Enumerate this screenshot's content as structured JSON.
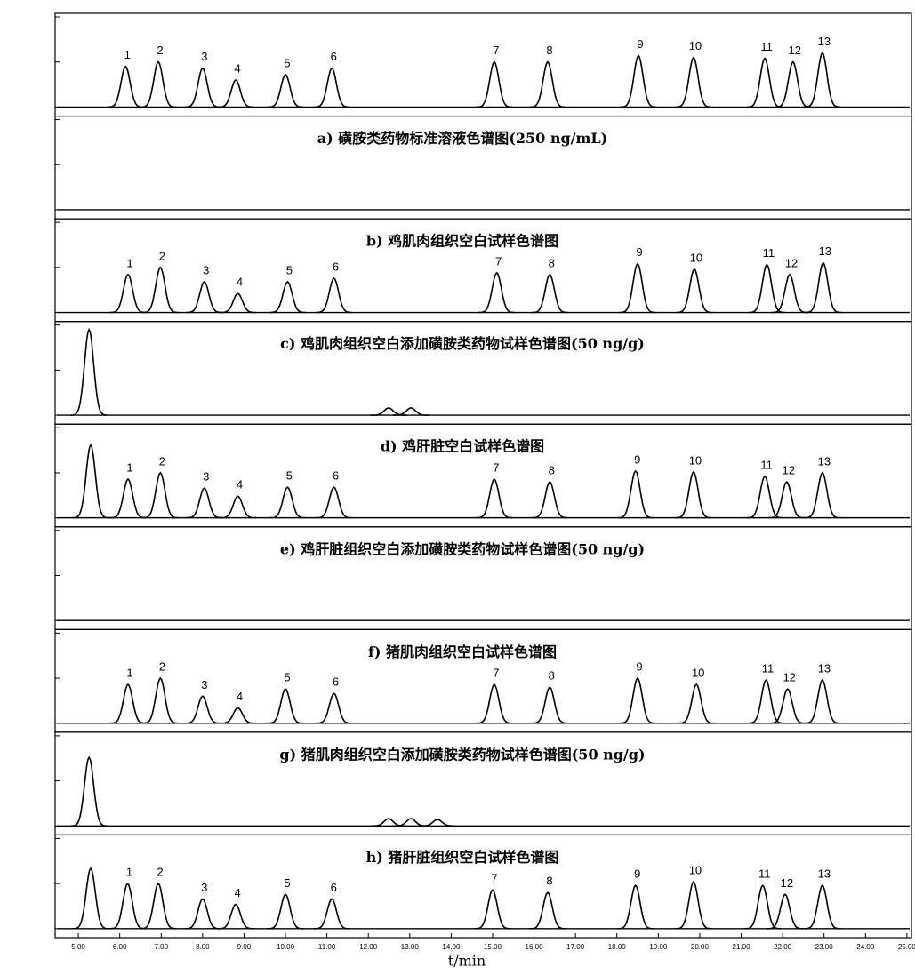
{
  "chart_data": [
    {
      "type": "chromatogram",
      "ylim": [
        -0.1,
        1
      ],
      "yticks": [
        0,
        0.5,
        1
      ],
      "peak_labels": [
        "1",
        "2",
        "3",
        "4",
        "5",
        "6",
        "7",
        "8",
        "9",
        "10",
        "11",
        "12",
        "13"
      ],
      "peak_x": [
        6.14,
        6.93,
        8.0,
        8.8,
        10.0,
        11.12,
        15.04,
        16.33,
        18.52,
        19.85,
        21.57,
        22.25,
        22.96
      ],
      "peak_heights": [
        0.45,
        0.5,
        0.43,
        0.3,
        0.36,
        0.43,
        0.5,
        0.5,
        0.57,
        0.55,
        0.54,
        0.5,
        0.6
      ],
      "caption": "a)  磺胺类药物标准溶液色谱图(250 ng/mL)"
    },
    {
      "type": "chromatogram",
      "ylim": [
        -0.1,
        1
      ],
      "yticks": [
        0,
        0.5,
        1
      ],
      "peak_labels": [],
      "peak_x": [],
      "peak_heights": [],
      "caption": "b)  鸡肌肉组织空白试样色谱图"
    },
    {
      "type": "chromatogram",
      "ylim": [
        -0.1,
        1
      ],
      "yticks": [
        0,
        0.5,
        1
      ],
      "peak_labels": [
        "1",
        "2",
        "3",
        "4",
        "5",
        "6",
        "7",
        "8",
        "9",
        "10",
        "11",
        "12",
        "13"
      ],
      "peak_x": [
        6.2,
        6.98,
        8.04,
        8.85,
        10.05,
        11.17,
        15.1,
        16.38,
        18.5,
        19.87,
        21.62,
        22.17,
        22.98
      ],
      "peak_heights": [
        0.42,
        0.5,
        0.34,
        0.21,
        0.34,
        0.38,
        0.44,
        0.42,
        0.54,
        0.48,
        0.53,
        0.42,
        0.55
      ],
      "caption": "c)  鸡肌肉组织空白添加磺胺类药物试样色谱图(50 ng/g)"
    },
    {
      "type": "chromatogram",
      "ylim": [
        -0.1,
        1
      ],
      "yticks": [
        0,
        0.5,
        1
      ],
      "peak_labels": [
        null,
        null,
        null
      ],
      "peak_x": [
        5.26,
        12.49,
        13.03
      ],
      "peak_heights": [
        0.95,
        0.08,
        0.08
      ],
      "caption": "d)  鸡肝脏空白试样色谱图"
    },
    {
      "type": "chromatogram",
      "ylim": [
        -0.1,
        1
      ],
      "yticks": [
        0,
        0.5,
        1
      ],
      "peak_labels": [
        null,
        "1",
        "2",
        "3",
        "4",
        "5",
        "6",
        "7",
        "8",
        "9",
        "10",
        "11",
        "12",
        "13"
      ],
      "peak_x": [
        5.3,
        6.2,
        6.98,
        8.04,
        8.85,
        10.05,
        11.17,
        15.04,
        16.38,
        18.45,
        19.85,
        21.57,
        22.1,
        22.96
      ],
      "peak_heights": [
        0.81,
        0.43,
        0.5,
        0.33,
        0.24,
        0.34,
        0.34,
        0.43,
        0.4,
        0.52,
        0.51,
        0.46,
        0.4,
        0.5
      ],
      "caption": "e)  鸡肝脏组织空白添加磺胺类药物试样色谱图(50 ng/g)"
    },
    {
      "type": "chromatogram",
      "ylim": [
        -0.1,
        1
      ],
      "yticks": [
        0,
        0.5,
        1
      ],
      "peak_labels": [],
      "peak_x": [],
      "peak_heights": [],
      "caption": "f)  猪肌肉组织空白试样色谱图"
    },
    {
      "type": "chromatogram",
      "ylim": [
        -0.1,
        1
      ],
      "yticks": [
        0,
        0.5,
        1
      ],
      "peak_labels": [
        "1",
        "2",
        "3",
        "4",
        "5",
        "6",
        "7",
        "8",
        "9",
        "10",
        "11",
        "12",
        "13"
      ],
      "peak_x": [
        6.2,
        6.98,
        8.0,
        8.85,
        10.0,
        11.17,
        15.04,
        16.38,
        18.5,
        19.92,
        21.6,
        22.12,
        22.96
      ],
      "peak_heights": [
        0.43,
        0.5,
        0.3,
        0.17,
        0.38,
        0.33,
        0.43,
        0.4,
        0.5,
        0.43,
        0.48,
        0.38,
        0.48
      ],
      "caption": "g)  猪肌肉组织空白添加磺胺类药物试样色谱图(50 ng/g)"
    },
    {
      "type": "chromatogram",
      "ylim": [
        -0.1,
        1
      ],
      "yticks": [
        0,
        0.5,
        1
      ],
      "peak_labels": [
        null,
        null,
        null,
        null
      ],
      "peak_x": [
        5.26,
        12.49,
        13.03,
        13.67
      ],
      "peak_heights": [
        0.76,
        0.08,
        0.08,
        0.07
      ],
      "caption": "h)  猪肝脏组织空白试样色谱图"
    },
    {
      "type": "chromatogram",
      "ylim": [
        -0.1,
        1
      ],
      "yticks": [
        0,
        0.5,
        1
      ],
      "peak_labels": [
        null,
        "1",
        "2",
        "3",
        "4",
        "5",
        "6",
        "7",
        "8",
        "9",
        "10",
        "11",
        "12",
        "13"
      ],
      "peak_x": [
        5.3,
        6.19,
        6.93,
        8.0,
        8.8,
        10.0,
        11.12,
        15.0,
        16.33,
        18.45,
        19.85,
        21.52,
        22.06,
        22.96
      ],
      "peak_heights": [
        0.67,
        0.5,
        0.5,
        0.33,
        0.27,
        0.38,
        0.33,
        0.43,
        0.4,
        0.48,
        0.52,
        0.48,
        0.38,
        0.48
      ],
      "xlim": [
        4.44,
        25.11
      ],
      "xticks": [
        {
          "value": 5,
          "label": "5.00"
        },
        {
          "value": 6,
          "label": "6.00"
        },
        {
          "value": 7,
          "label": "7.00"
        },
        {
          "value": 8,
          "label": "8.00"
        },
        {
          "value": 9,
          "label": "9.00"
        },
        {
          "value": 10,
          "label": "10.00"
        },
        {
          "value": 11,
          "label": "11.00"
        },
        {
          "value": 12,
          "label": "12.00"
        },
        {
          "value": 13,
          "label": "13.00"
        },
        {
          "value": 14,
          "label": "14.00"
        },
        {
          "value": 15,
          "label": "15.00"
        },
        {
          "value": 16,
          "label": "16.00"
        },
        {
          "value": 17,
          "label": "17.00"
        },
        {
          "value": 18,
          "label": "18.00"
        },
        {
          "value": 19,
          "label": "19.00"
        },
        {
          "value": 20,
          "label": "20.00"
        },
        {
          "value": 21,
          "label": "21.00"
        },
        {
          "value": 22,
          "label": "22.00"
        },
        {
          "value": 23,
          "label": "23.00"
        },
        {
          "value": 24,
          "label": "24.00"
        },
        {
          "value": 25,
          "label": "25.00"
        }
      ],
      "x_label": "t/min"
    }
  ]
}
